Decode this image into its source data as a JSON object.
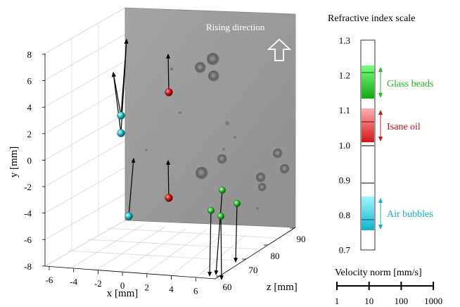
{
  "plot": {
    "rising_label": "Rising direction",
    "x_label": "x [mm]",
    "y_label": "y [mm]",
    "z_label": "z [mm]",
    "x_ticks": [
      "-6",
      "-4",
      "-2",
      "0",
      "2",
      "4",
      "6"
    ],
    "y_ticks": [
      "8",
      "6",
      "4",
      "2",
      "0",
      "-2",
      "-4",
      "-6",
      "-8"
    ],
    "z_ticks": [
      "60",
      "70",
      "80",
      "90"
    ],
    "colors": {
      "glass": "#22c422",
      "oil": "#cc1111",
      "air": "#10b8c8",
      "arrow": "#000000",
      "screen": "#9a9a9a"
    },
    "particles": [
      {
        "kind": "air",
        "name": "air-bubble-1"
      },
      {
        "kind": "air",
        "name": "air-bubble-2"
      },
      {
        "kind": "air",
        "name": "air-bubble-3"
      },
      {
        "kind": "oil",
        "name": "oil-droplet-1"
      },
      {
        "kind": "oil",
        "name": "oil-droplet-2"
      },
      {
        "kind": "glass",
        "name": "glass-bead-1"
      },
      {
        "kind": "glass",
        "name": "glass-bead-2"
      },
      {
        "kind": "glass",
        "name": "glass-bead-3"
      },
      {
        "kind": "glass",
        "name": "glass-bead-4"
      }
    ]
  },
  "refractive": {
    "title": "Refractive index scale",
    "ticks": [
      "1.3",
      "1.2",
      "1.1",
      "1.0",
      "0.9",
      "0.8",
      "0.7"
    ],
    "glass_label": "Glass beads",
    "oil_label": "Isane oil",
    "air_label": "Air bubbles"
  },
  "velocity": {
    "title": "Velocity norm [mm/s]",
    "ticks": [
      "1",
      "10",
      "100",
      "1000"
    ]
  }
}
